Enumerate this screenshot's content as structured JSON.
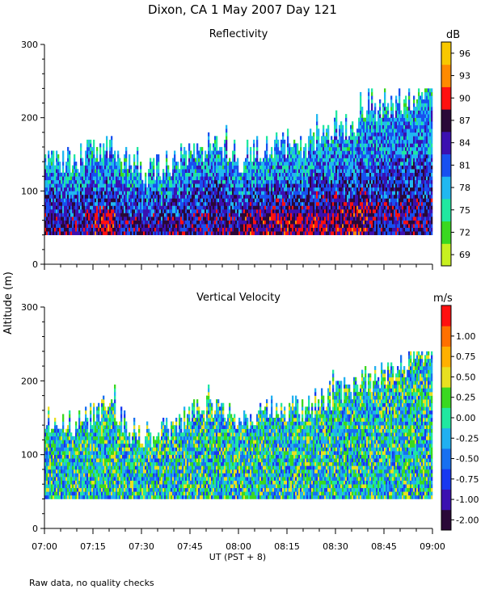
{
  "figure": {
    "title": "Dixon, CA  1 May 2007  Day 121",
    "footnote": "Raw data, no quality checks",
    "y_label": "Altitude (m)",
    "x_label": "UT  (PST + 8)"
  },
  "chart_data": [
    {
      "type": "heatmap",
      "title": "Reflectivity",
      "xlabel": "UT  (PST + 8)",
      "ylabel": "Altitude (m)",
      "x_ticks": [
        "07:00",
        "07:15",
        "07:30",
        "07:45",
        "08:00",
        "08:15",
        "08:30",
        "08:45",
        "09:00"
      ],
      "x_range_minutes": [
        0,
        120
      ],
      "y_ticks": [
        0,
        100,
        200,
        300
      ],
      "ylim": [
        0,
        300
      ],
      "colorbar": {
        "unit": "dB",
        "ticks": [
          69,
          72,
          75,
          78,
          81,
          84,
          87,
          90,
          93,
          96
        ],
        "colors": [
          "#c8f020",
          "#3ad820",
          "#20e8a0",
          "#20b8f0",
          "#1850f0",
          "#3b10b0",
          "#2a0838",
          "#ff1010",
          "#ff8a00",
          "#f8c800"
        ]
      },
      "echo_base_m": 40,
      "echo_top_m": [
        140,
        140,
        160,
        120,
        140,
        160,
        160,
        140,
        160,
        160,
        180,
        200,
        220,
        240
      ],
      "echo_top_times_min": [
        0,
        10,
        20,
        30,
        40,
        50,
        55,
        60,
        70,
        80,
        90,
        100,
        110,
        120
      ]
    },
    {
      "type": "heatmap",
      "title": "Vertical Velocity",
      "xlabel": "UT  (PST + 8)",
      "ylabel": "Altitude (m)",
      "x_ticks": [
        "07:00",
        "07:15",
        "07:30",
        "07:45",
        "08:00",
        "08:15",
        "08:30",
        "08:45",
        "09:00"
      ],
      "x_range_minutes": [
        0,
        120
      ],
      "y_ticks": [
        0,
        100,
        200,
        300
      ],
      "ylim": [
        0,
        300
      ],
      "colorbar": {
        "unit": "m/s",
        "ticks": [
          "-2.00",
          "-1.00",
          "-0.75",
          "-0.50",
          "-0.25",
          "0.00",
          "0.25",
          "0.50",
          "0.75",
          "1.00"
        ],
        "colors": [
          "#2a0838",
          "#3b10b0",
          "#1838f0",
          "#1870f0",
          "#20b0f0",
          "#20e8a0",
          "#3ad820",
          "#e8e020",
          "#ffb000",
          "#ff7000",
          "#ff1010"
        ]
      },
      "echo_base_m": 40,
      "echo_top_m": [
        140,
        140,
        160,
        120,
        140,
        160,
        160,
        140,
        160,
        160,
        180,
        200,
        220,
        240
      ],
      "echo_top_times_min": [
        0,
        10,
        20,
        30,
        40,
        50,
        55,
        60,
        70,
        80,
        90,
        100,
        110,
        120
      ]
    }
  ]
}
